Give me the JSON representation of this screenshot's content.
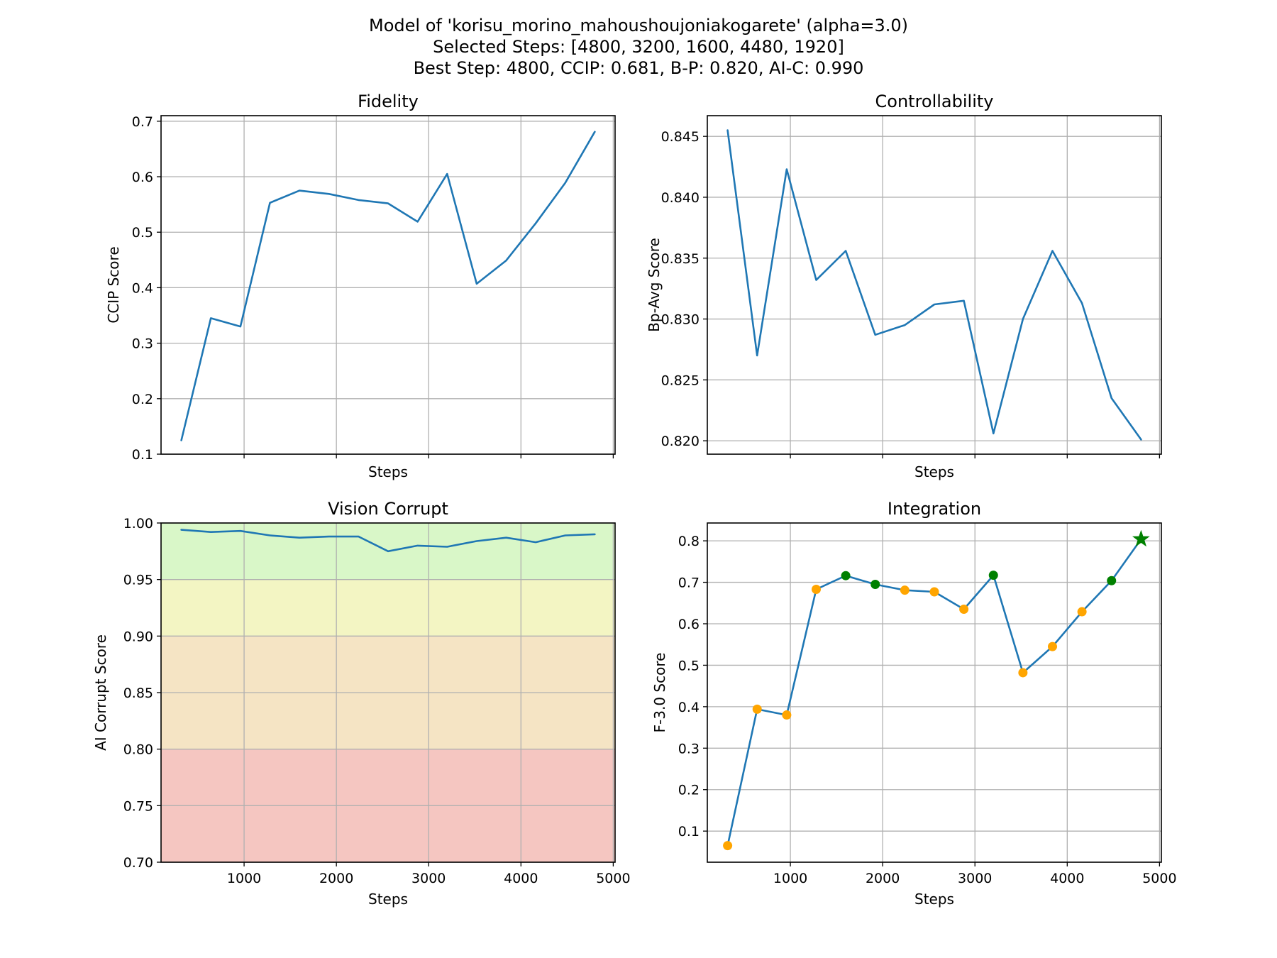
{
  "figure": {
    "title_lines": [
      "Model of 'korisu_morino_mahoushoujoniakogarete' (alpha=3.0)",
      "Selected Steps: [4800, 3200, 1600, 4480, 1920]",
      "Best Step: 4800, CCIP: 0.681, B-P: 0.820, AI-C: 0.990"
    ]
  },
  "colors": {
    "line": "#1f77b4",
    "marker_normal": "#ffa500",
    "marker_selected": "#008000",
    "marker_best": "#008000",
    "band_high": "#d9f7c8",
    "band_mid": "#f3f5c3",
    "band_low": "#f5e4c4",
    "band_bad": "#f5c6c1"
  },
  "chart_data": [
    {
      "type": "line",
      "title": "Fidelity",
      "xlabel": "Steps",
      "ylabel": "CCIP Score",
      "show_x_tick_labels": false,
      "xlim": [
        100,
        5020
      ],
      "ylim": [
        0.1,
        0.71
      ],
      "xticks": [
        1000,
        2000,
        3000,
        4000,
        5000
      ],
      "yticks": [
        0.1,
        0.2,
        0.3,
        0.4,
        0.5,
        0.6,
        0.7
      ],
      "y_decimals": 1,
      "grid": true,
      "x": [
        320,
        640,
        960,
        1280,
        1600,
        1920,
        2240,
        2560,
        2880,
        3200,
        3520,
        3840,
        4160,
        4480,
        4800
      ],
      "values": [
        0.125,
        0.345,
        0.33,
        0.553,
        0.575,
        0.569,
        0.558,
        0.552,
        0.519,
        0.605,
        0.407,
        0.449,
        0.516,
        0.589,
        0.681
      ]
    },
    {
      "type": "line",
      "title": "Controllability",
      "xlabel": "Steps",
      "ylabel": "Bp-Avg Score",
      "show_x_tick_labels": false,
      "xlim": [
        100,
        5020
      ],
      "ylim": [
        0.8189,
        0.8467
      ],
      "xticks": [
        1000,
        2000,
        3000,
        4000,
        5000
      ],
      "yticks": [
        0.82,
        0.825,
        0.83,
        0.835,
        0.84,
        0.845
      ],
      "y_decimals": 3,
      "grid": true,
      "x": [
        320,
        640,
        960,
        1280,
        1600,
        1920,
        2240,
        2560,
        2880,
        3200,
        3520,
        3840,
        4160,
        4480,
        4800
      ],
      "values": [
        0.8455,
        0.827,
        0.8423,
        0.8332,
        0.8356,
        0.8287,
        0.8295,
        0.8312,
        0.8315,
        0.8206,
        0.83,
        0.8356,
        0.8313,
        0.8235,
        0.8201
      ]
    },
    {
      "type": "line",
      "title": "Vision Corrupt",
      "xlabel": "Steps",
      "ylabel": "AI Corrupt Score",
      "show_x_tick_labels": true,
      "xlim": [
        100,
        5020
      ],
      "ylim": [
        0.7,
        1.0
      ],
      "xticks": [
        1000,
        2000,
        3000,
        4000,
        5000
      ],
      "yticks": [
        0.7,
        0.75,
        0.8,
        0.85,
        0.9,
        0.95,
        1.0
      ],
      "y_decimals": 2,
      "grid": true,
      "bands": [
        {
          "from": 0.95,
          "to": 1.0,
          "color": "band_high"
        },
        {
          "from": 0.9,
          "to": 0.95,
          "color": "band_mid"
        },
        {
          "from": 0.8,
          "to": 0.9,
          "color": "band_low"
        },
        {
          "from": 0.7,
          "to": 0.8,
          "color": "band_bad"
        }
      ],
      "x": [
        320,
        640,
        960,
        1280,
        1600,
        1920,
        2240,
        2560,
        2880,
        3200,
        3520,
        3840,
        4160,
        4480,
        4800
      ],
      "values": [
        0.994,
        0.992,
        0.993,
        0.989,
        0.987,
        0.988,
        0.988,
        0.975,
        0.98,
        0.979,
        0.984,
        0.987,
        0.983,
        0.989,
        0.99
      ]
    },
    {
      "type": "line",
      "title": "Integration",
      "xlabel": "Steps",
      "ylabel": "F-3.0 Score",
      "show_x_tick_labels": true,
      "xlim": [
        100,
        5020
      ],
      "ylim": [
        0.025,
        0.843
      ],
      "xticks": [
        1000,
        2000,
        3000,
        4000,
        5000
      ],
      "yticks": [
        0.1,
        0.2,
        0.3,
        0.4,
        0.5,
        0.6,
        0.7,
        0.8
      ],
      "y_decimals": 1,
      "grid": true,
      "x": [
        320,
        640,
        960,
        1280,
        1600,
        1920,
        2240,
        2560,
        2880,
        3200,
        3520,
        3840,
        4160,
        4480,
        4800
      ],
      "values": [
        0.065,
        0.394,
        0.38,
        0.683,
        0.716,
        0.695,
        0.681,
        0.677,
        0.635,
        0.717,
        0.482,
        0.545,
        0.629,
        0.704,
        0.804
      ],
      "markers": [
        "normal",
        "normal",
        "normal",
        "normal",
        "selected",
        "selected",
        "normal",
        "normal",
        "normal",
        "selected",
        "normal",
        "normal",
        "normal",
        "selected",
        "best"
      ]
    }
  ]
}
